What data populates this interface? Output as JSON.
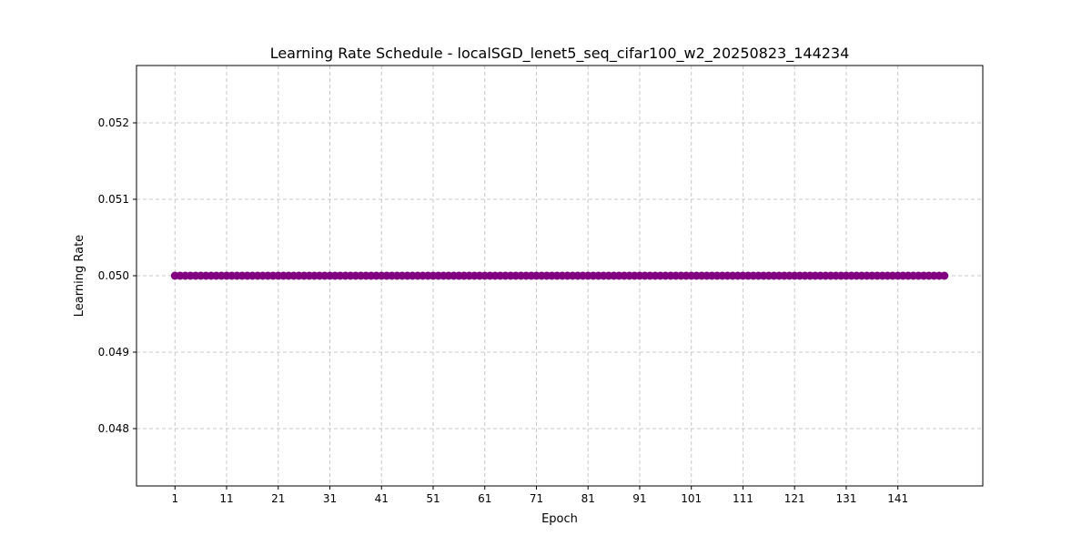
{
  "chart_data": {
    "type": "line",
    "title": "Learning Rate Schedule - localSGD_lenet5_seq_cifar100_w2_20250823_144234",
    "xlabel": "Epoch",
    "ylabel": "Learning Rate",
    "x_ticks": [
      1,
      11,
      21,
      31,
      41,
      51,
      61,
      71,
      81,
      91,
      101,
      111,
      121,
      131,
      141
    ],
    "y_ticks": [
      0.048,
      0.049,
      0.05,
      0.051,
      0.052
    ],
    "y_tick_labels": [
      "0.048",
      "0.049",
      "0.050",
      "0.051",
      "0.052"
    ],
    "xlim": [
      -6.45,
      157.45
    ],
    "ylim": [
      0.04725,
      0.05275
    ],
    "grid": true,
    "marker": "circle",
    "series": [
      {
        "color": "#800080",
        "x_start": 1,
        "x_end": 150,
        "y": 0.05
      }
    ]
  }
}
